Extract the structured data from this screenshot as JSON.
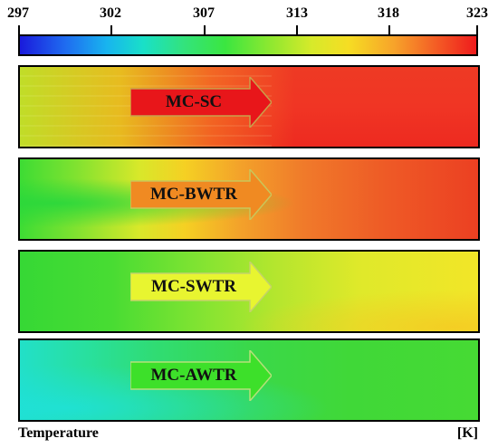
{
  "colorbar": {
    "ticks": [
      "297",
      "302",
      "307",
      "313",
      "318",
      "323"
    ],
    "min": 297,
    "max": 323
  },
  "panels": [
    {
      "label": "MC-SC",
      "arrow_fill": "#e8161a",
      "bg": "sc"
    },
    {
      "label": "MC-BWTR",
      "arrow_fill": "#f08a22",
      "bg": "bwtr"
    },
    {
      "label": "MC-SWTR",
      "arrow_fill": "#e8f530",
      "bg": "swtr"
    },
    {
      "label": "MC-AWTR",
      "arrow_fill": "#3de02a",
      "bg": "awtr"
    }
  ],
  "footer": {
    "left": "Temperature",
    "right": "[K]"
  }
}
